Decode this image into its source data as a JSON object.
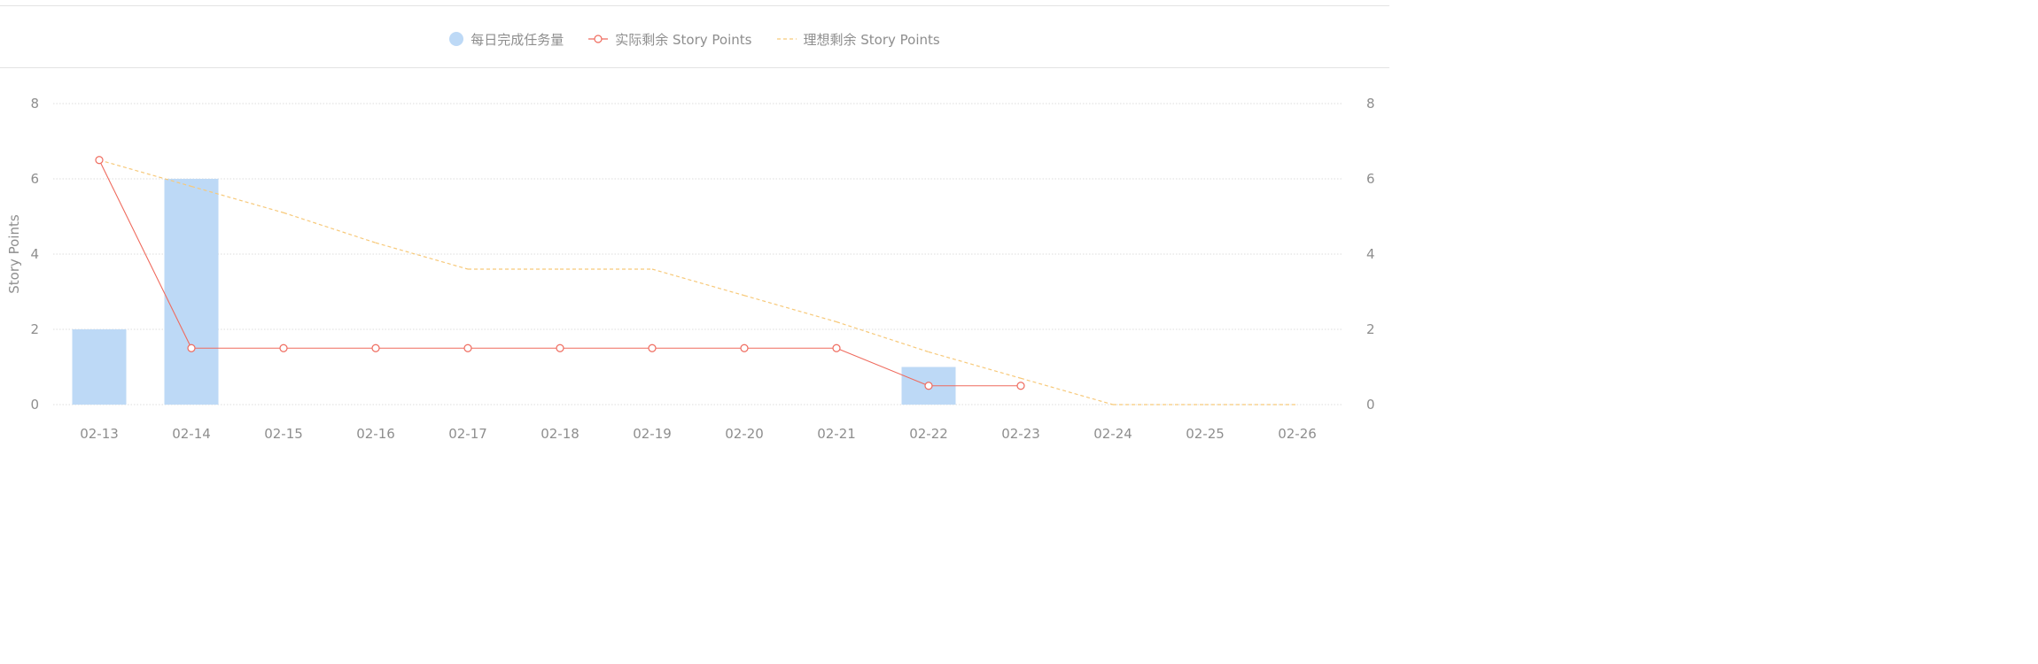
{
  "chart_data": {
    "type": "bar",
    "categories": [
      "02-13",
      "02-14",
      "02-15",
      "02-16",
      "02-17",
      "02-18",
      "02-19",
      "02-20",
      "02-21",
      "02-22",
      "02-23",
      "02-24",
      "02-25",
      "02-26"
    ],
    "series": [
      {
        "name": "每日完成任务量",
        "type": "bar",
        "values": [
          2,
          6,
          0,
          0,
          0,
          0,
          0,
          0,
          0,
          1,
          0,
          0,
          0,
          0
        ],
        "color": "#bdd9f6",
        "axis": "right"
      },
      {
        "name": "实际剩余 Story Points",
        "type": "line",
        "values": [
          6.5,
          1.5,
          1.5,
          1.5,
          1.5,
          1.5,
          1.5,
          1.5,
          1.5,
          0.5,
          0.5,
          null,
          null,
          null
        ],
        "color": "#ef6b5e",
        "axis": "left"
      },
      {
        "name": "理想剩余 Story Points",
        "type": "line",
        "dashed": true,
        "values": [
          6.5,
          5.8,
          5.1,
          4.3,
          3.6,
          3.6,
          3.6,
          2.9,
          2.2,
          1.4,
          0.7,
          0,
          0,
          0
        ],
        "color": "#f7c97a",
        "axis": "left"
      }
    ],
    "ylabel": "Story Points",
    "ylabel_right": "",
    "yticks": [
      "0",
      "2",
      "4",
      "6",
      "8"
    ],
    "ylim": [
      0,
      8
    ],
    "ylim_right": [
      0,
      8
    ],
    "grid": true,
    "legend_position": "top-center"
  }
}
